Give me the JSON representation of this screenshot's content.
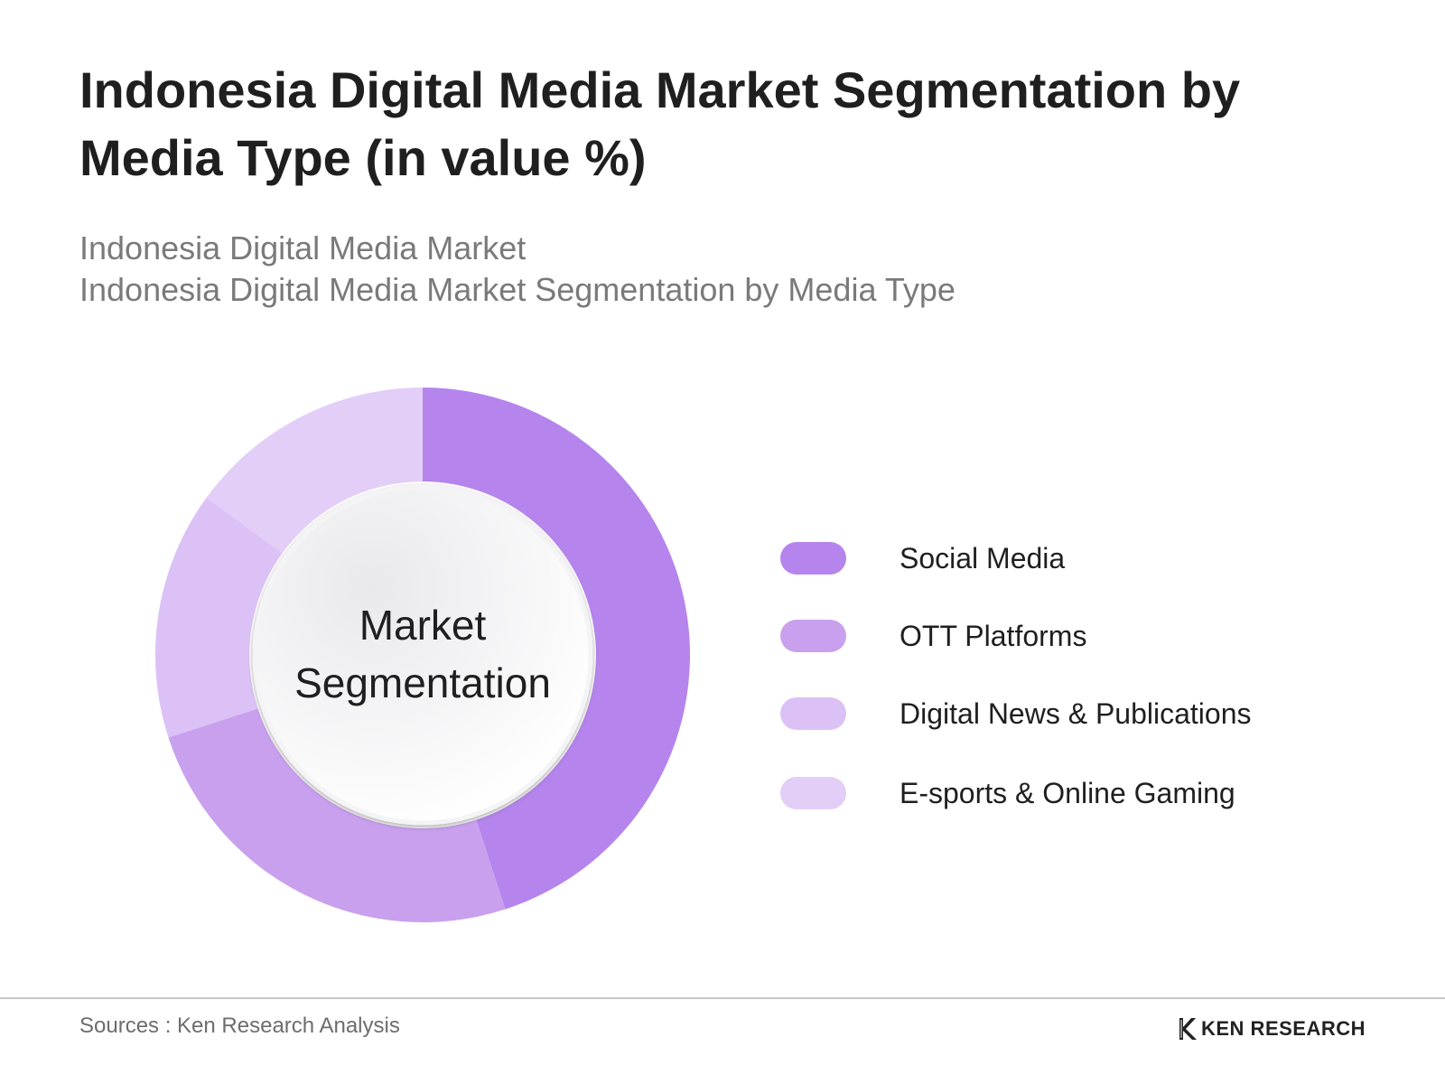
{
  "header": {
    "title": "Indonesia Digital Media Market Segmentation by Media Type (in value %)",
    "subtitle_line1": "Indonesia Digital Media Market",
    "subtitle_line2": "Indonesia Digital Media Market Segmentation by Media Type"
  },
  "chart_data": {
    "type": "pie",
    "variant": "donut",
    "center_label_line1": "Market",
    "center_label_line2": "Segmentation",
    "legend_position": "right",
    "categories": [
      "Social Media",
      "OTT Platforms",
      "Digital News & Publications",
      "E-sports & Online Gaming"
    ],
    "values": [
      45,
      25,
      15,
      15
    ],
    "colors": [
      "#b584ec",
      "#c9a0ee",
      "#dbc1f5",
      "#e3cef7"
    ]
  },
  "footer": {
    "source": "Sources : Ken Research Analysis",
    "brand": "KEN RESEARCH"
  }
}
